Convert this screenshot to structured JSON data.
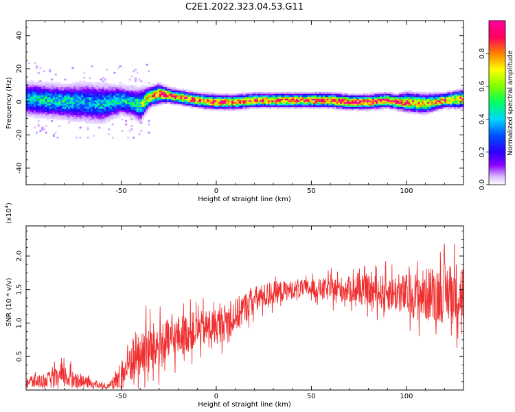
{
  "title": "C2E1.2022.323.04.53.G11",
  "chart_data": [
    {
      "type": "heatmap",
      "xlabel": "Height of straight line (km)",
      "ylabel": "Frequency (Hz)",
      "xlim": [
        -100,
        130
      ],
      "ylim": [
        -50,
        49
      ],
      "xticks": [
        -50,
        0,
        50,
        100
      ],
      "yticks": [
        -40,
        -20,
        0,
        20,
        40
      ],
      "xtick_labels": [
        "-50",
        "0",
        "50",
        "100"
      ],
      "ytick_labels": [
        "-40",
        "-20",
        "0",
        "20",
        "40"
      ],
      "colorbar": {
        "label": "Normalized spectral amplitude",
        "range": [
          0,
          1
        ],
        "ticks": [
          0.0,
          0.2,
          0.4,
          0.6,
          0.8
        ],
        "tick_labels": [
          "0.0",
          "0.2",
          "0.4",
          "0.6",
          "0.8"
        ],
        "colors": [
          "#ffffff",
          "#d8b8ff",
          "#8a00ff",
          "#2a00ff",
          "#0050ff",
          "#00d8ff",
          "#00ff60",
          "#80ff00",
          "#ffff00",
          "#ff8000",
          "#ff0060",
          "#ff00a0"
        ]
      },
      "ridge_profile": {
        "x": [
          -100,
          -90,
          -80,
          -70,
          -60,
          -50,
          -45,
          -40,
          -35,
          -30,
          -25,
          -20,
          -10,
          0,
          10,
          20,
          30,
          40,
          50,
          60,
          70,
          80,
          90,
          95,
          100,
          110,
          120,
          130
        ],
        "freq": [
          2,
          1,
          0,
          0,
          -1,
          1,
          0,
          -2,
          3,
          5,
          4,
          3,
          1,
          0,
          0,
          1,
          1,
          1,
          1,
          1,
          0,
          0,
          1,
          0,
          0,
          -1,
          1,
          2
        ],
        "amplitude": [
          0.45,
          0.5,
          0.5,
          0.45,
          0.45,
          0.5,
          0.5,
          0.55,
          0.8,
          0.9,
          0.9,
          0.85,
          0.85,
          0.9,
          0.85,
          0.85,
          0.85,
          0.85,
          0.9,
          0.9,
          0.95,
          0.95,
          0.95,
          0.9,
          0.85,
          0.8,
          0.85,
          0.8
        ],
        "spread": [
          7,
          7,
          7,
          8,
          8,
          6,
          6,
          7,
          4,
          4,
          3,
          3,
          3,
          3,
          3,
          3,
          3,
          3,
          3,
          3,
          3,
          3,
          3,
          3,
          4,
          4,
          3,
          4
        ]
      }
    },
    {
      "type": "line",
      "xlabel": "Height of straight line (km)",
      "ylabel": "SNR (10 * v/v)",
      "y_multiplier_label": "(x10",
      "y_multiplier_exp": "4",
      "y_multiplier_close": ")",
      "xlim": [
        -100,
        130
      ],
      "ylim": [
        0,
        2.45
      ],
      "xticks": [
        -50,
        0,
        50,
        100
      ],
      "yticks": [
        0.5,
        1.0,
        1.5,
        2.0
      ],
      "xtick_labels": [
        "-50",
        "0",
        "50",
        "100"
      ],
      "ytick_labels": [
        "0.5",
        "1.0",
        "1.5",
        "2.0"
      ],
      "color": "#f03030",
      "trend": {
        "x": [
          -100,
          -90,
          -80,
          -70,
          -60,
          -55,
          -50,
          -45,
          -40,
          -35,
          -30,
          -20,
          -10,
          0,
          10,
          20,
          30,
          40,
          50,
          60,
          70,
          80,
          90,
          100,
          110,
          120,
          130
        ],
        "y": [
          0.12,
          0.14,
          0.2,
          0.12,
          0.06,
          0.08,
          0.2,
          0.45,
          0.55,
          0.6,
          0.65,
          0.8,
          0.9,
          0.95,
          1.1,
          1.35,
          1.45,
          1.5,
          1.52,
          1.5,
          1.5,
          1.48,
          1.46,
          1.42,
          1.42,
          1.45,
          1.45
        ]
      },
      "noise": {
        "x": [
          -100,
          -90,
          -80,
          -70,
          -60,
          -55,
          -50,
          -45,
          -40,
          -35,
          -30,
          -20,
          -10,
          0,
          10,
          20,
          30,
          40,
          50,
          60,
          70,
          80,
          90,
          100,
          110,
          120,
          130
        ],
        "amp": [
          0.12,
          0.12,
          0.2,
          0.1,
          0.05,
          0.08,
          0.3,
          0.4,
          0.45,
          0.45,
          0.4,
          0.35,
          0.3,
          0.3,
          0.3,
          0.22,
          0.2,
          0.15,
          0.15,
          0.2,
          0.22,
          0.25,
          0.3,
          0.35,
          0.45,
          0.5,
          0.55
        ]
      }
    }
  ]
}
